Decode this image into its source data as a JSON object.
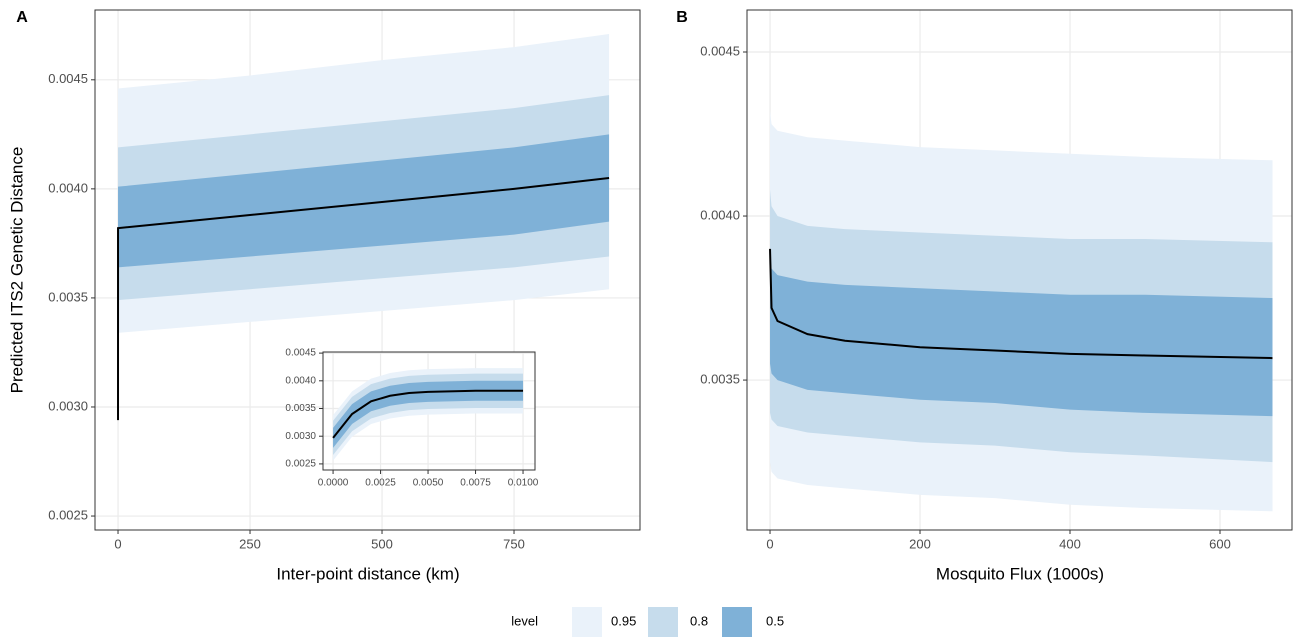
{
  "legend_title": "level",
  "legend": "bottom",
  "chart_data": [
    {
      "type": "line",
      "panel_label": "A",
      "xlabel": "Inter-point distance (km)",
      "ylabel": "Predicted ITS2 Genetic Distance",
      "grid": true,
      "x": [
        0,
        0.01,
        250,
        500,
        750,
        930
      ],
      "xlim": [
        -43.6,
        988.6
      ],
      "ylim": [
        0.002436,
        0.00482
      ],
      "xticks": [
        0,
        250,
        500,
        750
      ],
      "yticks": [
        0.0025,
        {
          "value": 0.003,
          "label": "0.0030"
        },
        0.0035,
        {
          "value": 0.004,
          "label": "0.0040"
        },
        0.0045
      ],
      "series": [
        {
          "name": "0.95",
          "color": "#eaf2fa",
          "upper": [
            null,
            0.00446,
            0.00452,
            0.00459,
            0.00465,
            0.00471
          ],
          "lower": [
            null,
            0.00334,
            0.00339,
            0.00344,
            0.00349,
            0.00354
          ]
        },
        {
          "name": "0.8",
          "color": "#c6dcec",
          "upper": [
            null,
            0.00419,
            0.00425,
            0.00431,
            0.00437,
            0.00443
          ],
          "lower": [
            null,
            0.00349,
            0.00354,
            0.00359,
            0.00364,
            0.00369
          ]
        },
        {
          "name": "0.5",
          "color": "#7fb1d7",
          "upper": [
            null,
            0.00401,
            0.00407,
            0.00413,
            0.00419,
            0.00425
          ],
          "lower": [
            null,
            0.00364,
            0.00369,
            0.00374,
            0.00379,
            0.00385
          ]
        }
      ],
      "line_color": "#000000",
      "line_values": [
        0.00294,
        0.00382,
        0.00388,
        0.00394,
        0.004,
        0.00405
      ]
    },
    {
      "type": "line",
      "panel_label": "B",
      "xlabel": "Mosquito Flux (1000s)",
      "grid": true,
      "x": [
        0,
        2,
        10,
        50,
        100,
        200,
        300,
        400,
        500,
        670
      ],
      "xlim": [
        -30.7,
        696
      ],
      "ylim": [
        0.003043,
        0.004628
      ],
      "xticks": [
        0,
        200,
        400,
        600
      ],
      "yticks": [
        0.0035,
        {
          "value": 0.004,
          "label": "0.0040"
        },
        0.0045
      ],
      "series": [
        {
          "name": "0.95",
          "color": "#eaf2fa",
          "upper": [
            0.00432,
            0.00428,
            0.00426,
            0.00424,
            0.00423,
            0.00421,
            0.0042,
            0.00419,
            0.00418,
            0.00417
          ],
          "lower": [
            0.00325,
            0.00322,
            0.0032,
            0.00318,
            0.00317,
            0.00315,
            0.00314,
            0.00312,
            0.00311,
            0.0031
          ]
        },
        {
          "name": "0.8",
          "color": "#c6dcec",
          "upper": [
            0.00408,
            0.00403,
            0.004,
            0.00397,
            0.00396,
            0.00395,
            0.00394,
            0.00393,
            0.00393,
            0.00392
          ],
          "lower": [
            0.0034,
            0.00338,
            0.00336,
            0.00334,
            0.00333,
            0.00331,
            0.0033,
            0.00328,
            0.00327,
            0.00325
          ]
        },
        {
          "name": "0.5",
          "color": "#7fb1d7",
          "upper": [
            0.00389,
            0.00384,
            0.00382,
            0.0038,
            0.00379,
            0.00378,
            0.00377,
            0.00376,
            0.00376,
            0.00375
          ],
          "lower": [
            0.00355,
            0.00352,
            0.0035,
            0.00347,
            0.00346,
            0.00344,
            0.00343,
            0.00341,
            0.0034,
            0.00339
          ]
        }
      ],
      "line_color": "#000000",
      "line_values": [
        0.0039,
        0.00372,
        0.00368,
        0.00364,
        0.00362,
        0.0036,
        0.00359,
        0.00358,
        0.003575,
        0.003567
      ]
    },
    {
      "type": "line",
      "grid": true,
      "x": [
        0,
        0.001,
        0.002,
        0.003,
        0.004,
        0.005,
        0.0075,
        0.01
      ],
      "xlim": [
        -0.00053,
        0.01063
      ],
      "ylim": [
        0.00239,
        0.00452
      ],
      "xticks": [
        {
          "value": 0,
          "label": "0.0000"
        },
        0.0025,
        {
          "value": 0.005,
          "label": "0.0050"
        },
        0.0075,
        {
          "value": 0.01,
          "label": "0.0100"
        }
      ],
      "yticks": [
        0.0025,
        {
          "value": 0.003,
          "label": "0.0030"
        },
        0.0035,
        {
          "value": 0.004,
          "label": "0.0040"
        },
        0.0045
      ],
      "series": [
        {
          "name": "0.95",
          "color": "#eaf2fa",
          "upper": [
            0.00338,
            0.00381,
            0.00404,
            0.00414,
            0.00419,
            0.00421,
            0.00423,
            0.00423
          ],
          "lower": [
            0.00256,
            0.00299,
            0.00322,
            0.00332,
            0.00337,
            0.00339,
            0.00341,
            0.00341
          ]
        },
        {
          "name": "0.8",
          "color": "#c6dcec",
          "upper": [
            0.00328,
            0.00371,
            0.00394,
            0.00404,
            0.00409,
            0.00411,
            0.00413,
            0.00413
          ],
          "lower": [
            0.00266,
            0.00309,
            0.00332,
            0.00342,
            0.00347,
            0.00349,
            0.00351,
            0.00351
          ]
        },
        {
          "name": "0.5",
          "color": "#7fb1d7",
          "upper": [
            0.00315,
            0.00358,
            0.00381,
            0.00391,
            0.00396,
            0.00398,
            0.004,
            0.004
          ],
          "lower": [
            0.00279,
            0.00322,
            0.00345,
            0.00355,
            0.0036,
            0.00362,
            0.00364,
            0.00364
          ]
        }
      ],
      "line_color": "#000000",
      "line_values": [
        0.00297,
        0.0034,
        0.00363,
        0.00373,
        0.00378,
        0.0038,
        0.00382,
        0.00382
      ]
    }
  ]
}
